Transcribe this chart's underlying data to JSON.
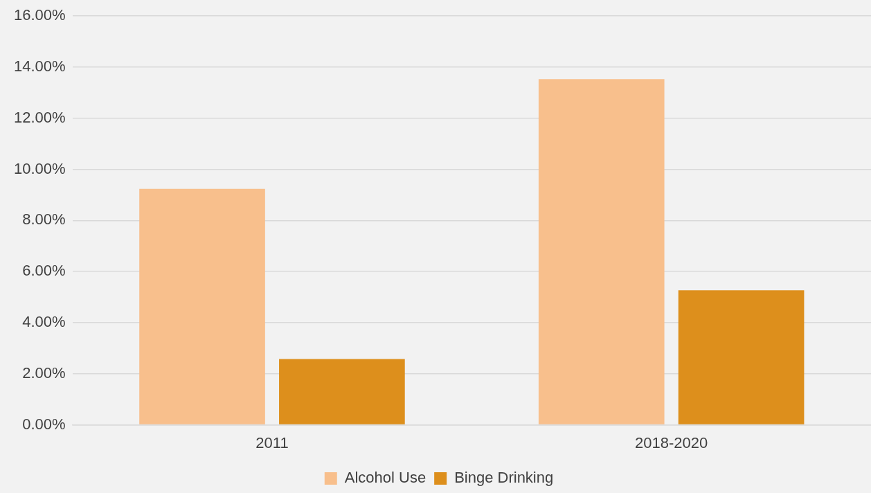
{
  "chart_data": {
    "type": "bar",
    "categories": [
      "2011",
      "2018-2020"
    ],
    "series": [
      {
        "name": "Alcohol Use",
        "color": "#f8bf8c",
        "values": [
          9.24,
          13.53
        ]
      },
      {
        "name": "Binge Drinking",
        "color": "#dd8f1c",
        "values": [
          2.58,
          5.27
        ]
      }
    ],
    "ylim": [
      0,
      16
    ],
    "yticks": [
      {
        "value": 0,
        "label": "0.00%"
      },
      {
        "value": 2,
        "label": "2.00%"
      },
      {
        "value": 4,
        "label": "4.00%"
      },
      {
        "value": 6,
        "label": "6.00%"
      },
      {
        "value": 8,
        "label": "8.00%"
      },
      {
        "value": 10,
        "label": "10.00%"
      },
      {
        "value": 12,
        "label": "12.00%"
      },
      {
        "value": 14,
        "label": "14.00%"
      },
      {
        "value": 16,
        "label": "16.00%"
      }
    ],
    "grid": "y",
    "legend": "bottom"
  }
}
